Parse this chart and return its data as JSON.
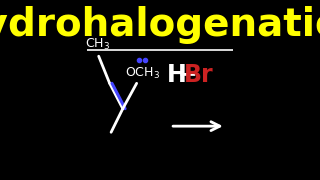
{
  "background_color": "#000000",
  "title": "Hydrohalogenation",
  "title_color": "#FFFF00",
  "title_fontsize": 28,
  "separator_color": "#FFFFFF",
  "molecule_color": "#FFFFFF",
  "double_bond_color": "#4444FF",
  "dots_color": "#4444FF",
  "h_color": "#FFFFFF",
  "br_color": "#CC2222",
  "arrow_color": "#FFFFFF"
}
